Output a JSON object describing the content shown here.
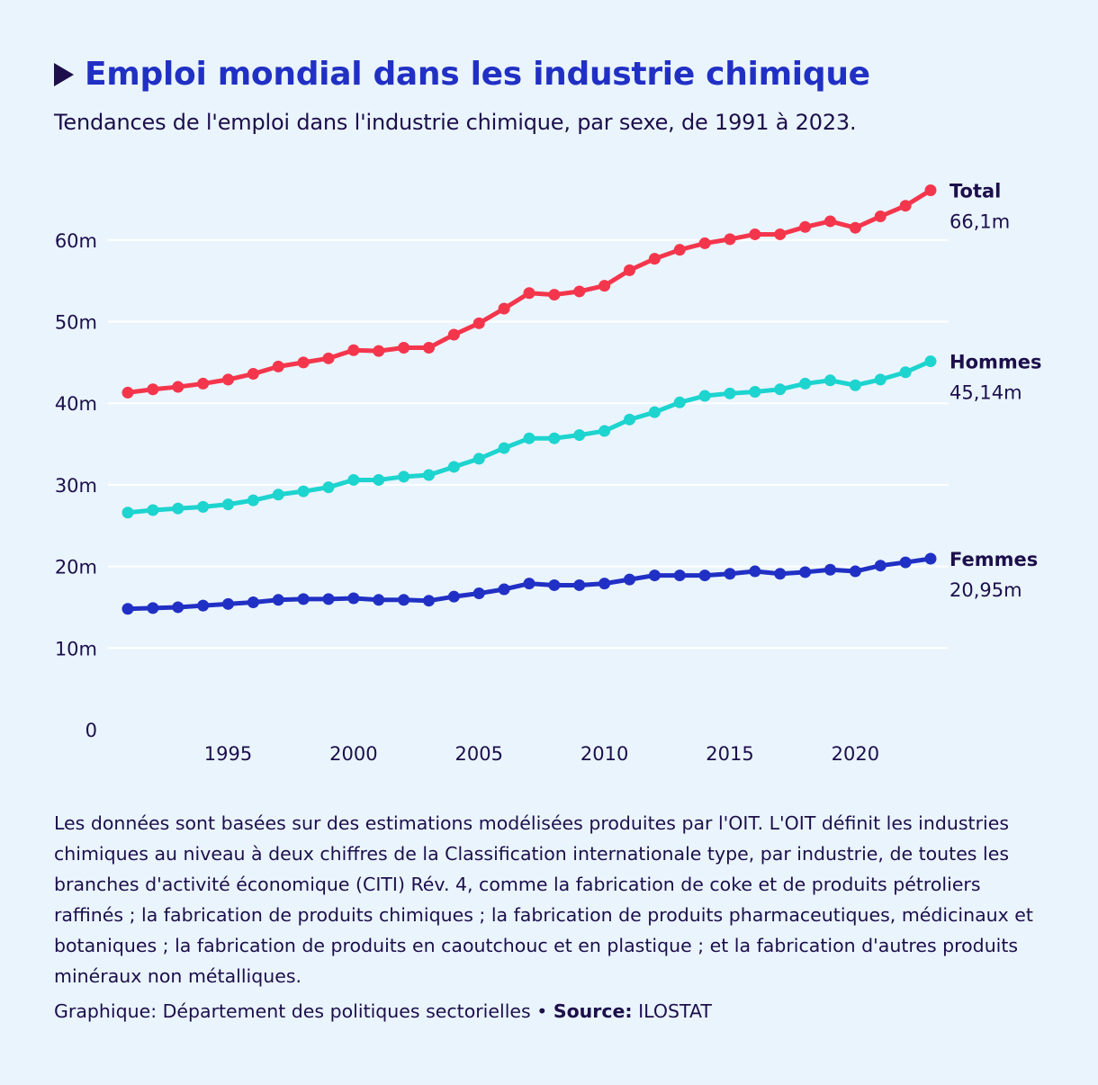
{
  "header": {
    "title": "Emploi mondial dans les industrie chimique",
    "subtitle": "Tendances de l'emploi dans l'industrie chimique, par sexe, de 1991 à 2023."
  },
  "footer": {
    "note": "Les données sont basées sur des estimations modélisées produites par l'OIT. L'OIT définit les industries chimiques au niveau à deux chiffres de la Classification internationale type, par industrie, de toutes les branches d'activité économique (CITI) Rév. 4, comme la fabrication de coke et de produits pétroliers raffinés ; la fabrication de produits chimiques ; la fabrication de produits pharmaceutiques, médicinaux et botaniques ; la fabrication de produits en caoutchouc et en plastique ; et la fabrication d'autres produits minéraux non métalliques.",
    "credit_label": "Graphique: Département des politiques sectorielles • ",
    "source_label": "Source:",
    "source_value": " ILOSTAT"
  },
  "chart_data": {
    "type": "line",
    "title": "Emploi mondial dans les industrie chimique",
    "xlabel": "",
    "ylabel": "",
    "xlim": [
      1991,
      2023
    ],
    "ylim": [
      0,
      66.1
    ],
    "x_ticks": [
      1995,
      2000,
      2005,
      2010,
      2015,
      2020
    ],
    "y_ticks": [
      0,
      10,
      20,
      30,
      40,
      50,
      60
    ],
    "y_tick_labels": [
      "0",
      "10m",
      "20m",
      "30m",
      "40m",
      "50m",
      "60m"
    ],
    "grid": true,
    "x": [
      1991,
      1992,
      1993,
      1994,
      1995,
      1996,
      1997,
      1998,
      1999,
      2000,
      2001,
      2002,
      2003,
      2004,
      2005,
      2006,
      2007,
      2008,
      2009,
      2010,
      2011,
      2012,
      2013,
      2014,
      2015,
      2016,
      2017,
      2018,
      2019,
      2020,
      2021,
      2022,
      2023
    ],
    "series": [
      {
        "name": "Total",
        "end_label": "66,1m",
        "color": "#f4364c",
        "values": [
          41.3,
          41.7,
          42.0,
          42.4,
          42.9,
          43.6,
          44.5,
          45.0,
          45.5,
          46.5,
          46.4,
          46.8,
          46.8,
          48.4,
          49.8,
          51.6,
          53.5,
          53.3,
          53.7,
          54.4,
          56.3,
          57.7,
          58.8,
          59.6,
          60.1,
          60.7,
          60.7,
          61.6,
          62.3,
          61.5,
          62.9,
          64.2,
          66.1
        ]
      },
      {
        "name": "Hommes",
        "end_label": "45,14m",
        "color": "#1dd4cf",
        "values": [
          26.6,
          26.9,
          27.1,
          27.3,
          27.6,
          28.1,
          28.8,
          29.2,
          29.7,
          30.6,
          30.6,
          31.0,
          31.2,
          32.2,
          33.2,
          34.5,
          35.7,
          35.7,
          36.1,
          36.6,
          38.0,
          38.9,
          40.1,
          40.9,
          41.2,
          41.4,
          41.7,
          42.4,
          42.8,
          42.2,
          42.9,
          43.8,
          45.14
        ]
      },
      {
        "name": "Femmes",
        "end_label": "20,95m",
        "color": "#2130c4",
        "values": [
          14.8,
          14.9,
          15.0,
          15.2,
          15.4,
          15.6,
          15.9,
          16.0,
          16.0,
          16.1,
          15.9,
          15.9,
          15.8,
          16.3,
          16.7,
          17.2,
          17.9,
          17.7,
          17.7,
          17.9,
          18.4,
          18.9,
          18.9,
          18.9,
          19.1,
          19.4,
          19.1,
          19.3,
          19.6,
          19.4,
          20.1,
          20.5,
          20.95
        ]
      }
    ]
  }
}
